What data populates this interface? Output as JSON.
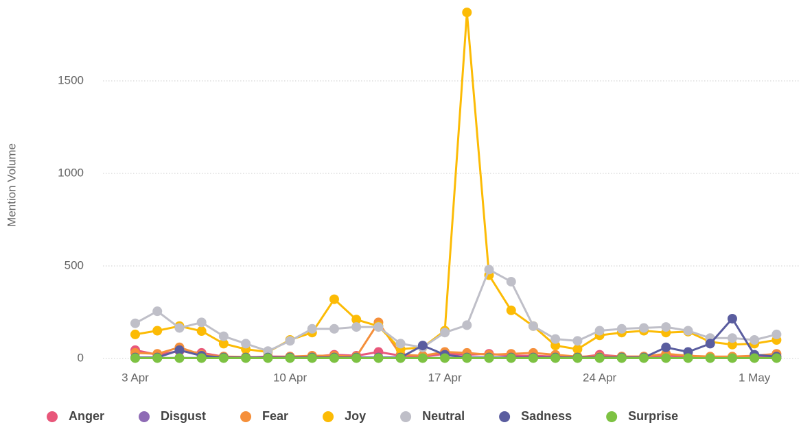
{
  "chart_data": {
    "type": "line",
    "y_label": "Mention Volume",
    "categories": [
      "3 Apr",
      null,
      null,
      null,
      null,
      null,
      null,
      "10 Apr",
      null,
      null,
      null,
      null,
      null,
      null,
      "17 Apr",
      null,
      null,
      null,
      null,
      null,
      null,
      "24 Apr",
      null,
      null,
      null,
      null,
      null,
      null,
      "1 May",
      null
    ],
    "ylim": [
      0,
      1900
    ],
    "yticks": [
      0,
      500,
      1000,
      1500
    ],
    "grid": true,
    "legend": "bottom",
    "series": [
      {
        "name": "Anger",
        "color": "#e8577a",
        "values": [
          45,
          20,
          40,
          30,
          10,
          5,
          10,
          10,
          10,
          20,
          15,
          35,
          15,
          10,
          25,
          20,
          25,
          15,
          15,
          10,
          5,
          20,
          10,
          10,
          15,
          10,
          5,
          5,
          5,
          10
        ]
      },
      {
        "name": "Disgust",
        "color": "#8e6bb5",
        "values": [
          3,
          3,
          3,
          3,
          3,
          3,
          3,
          3,
          3,
          3,
          3,
          3,
          3,
          3,
          3,
          3,
          3,
          3,
          3,
          3,
          3,
          3,
          3,
          3,
          3,
          3,
          3,
          3,
          3,
          3
        ]
      },
      {
        "name": "Fear",
        "color": "#f58f3a",
        "values": [
          30,
          25,
          60,
          20,
          10,
          8,
          5,
          10,
          15,
          15,
          10,
          195,
          20,
          15,
          35,
          30,
          20,
          25,
          30,
          20,
          10,
          10,
          10,
          10,
          25,
          15,
          10,
          10,
          15,
          25
        ]
      },
      {
        "name": "Joy",
        "color": "#fcbb05",
        "values": [
          130,
          150,
          175,
          148,
          80,
          50,
          35,
          100,
          140,
          320,
          210,
          175,
          50,
          60,
          150,
          1870,
          450,
          260,
          175,
          70,
          50,
          125,
          140,
          150,
          140,
          145,
          90,
          75,
          80,
          100
        ]
      },
      {
        "name": "Neutral",
        "color": "#bfbfc8",
        "values": [
          190,
          255,
          165,
          195,
          120,
          80,
          40,
          95,
          160,
          160,
          170,
          170,
          80,
          60,
          140,
          180,
          480,
          415,
          175,
          105,
          95,
          150,
          160,
          165,
          170,
          150,
          110,
          110,
          100,
          130
        ]
      },
      {
        "name": "Sadness",
        "color": "#5a5d9f",
        "values": [
          5,
          5,
          45,
          15,
          5,
          5,
          5,
          5,
          5,
          5,
          5,
          5,
          5,
          70,
          20,
          5,
          5,
          5,
          5,
          5,
          5,
          5,
          5,
          5,
          60,
          35,
          80,
          215,
          20,
          10
        ]
      },
      {
        "name": "Surprise",
        "color": "#7dc242",
        "values": [
          2,
          2,
          2,
          2,
          2,
          2,
          2,
          2,
          2,
          2,
          2,
          2,
          2,
          2,
          2,
          2,
          2,
          2,
          2,
          2,
          2,
          2,
          2,
          2,
          2,
          2,
          2,
          2,
          2,
          2
        ]
      }
    ]
  }
}
